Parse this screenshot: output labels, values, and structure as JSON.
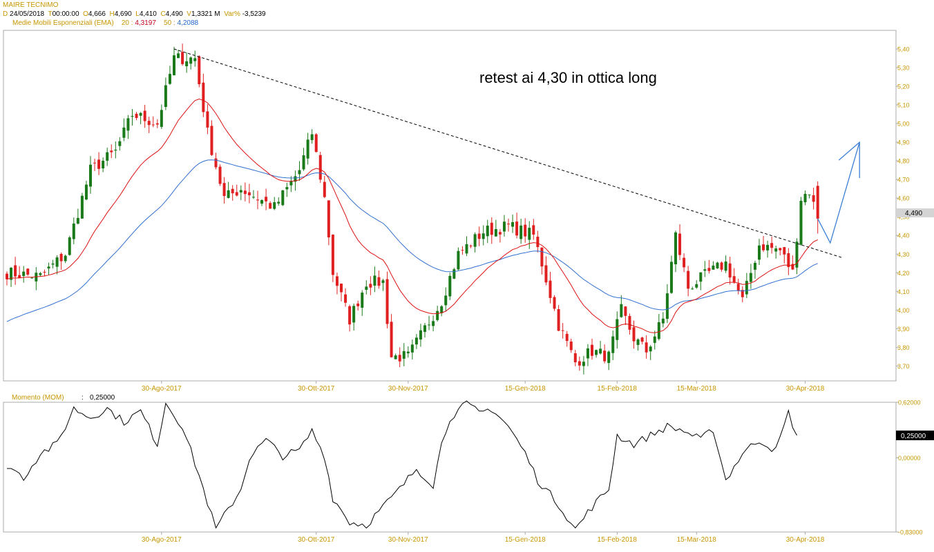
{
  "header": {
    "symbol": "MAIRE TECNIMO",
    "date_key": "D",
    "date": "24/05/2018",
    "time_key": "T",
    "time": "00:00:00",
    "open_key": "O",
    "open": "4,666",
    "high_key": "H",
    "high": "4,690",
    "low_key": "L",
    "low": "4,410",
    "close_key": "C",
    "close": "4,490",
    "vol_key": "V",
    "volume": "1,3321 M",
    "var_key": "Var%",
    "var": "-3,5239",
    "ema_label": "Medie Mobili Esponenziali (EMA)",
    "ema20_key": "20 :",
    "ema20": "4,3197",
    "ema50_key": "50 :",
    "ema50": "4,2088"
  },
  "annotation": "retest ai 4,30 in ottica long",
  "momentum": {
    "label": "Momento (MOM)",
    "sep": ":",
    "value": "0,25000"
  },
  "colors": {
    "up": "#1a7a1a",
    "down": "#e02020",
    "ema20": "#dd1010",
    "ema50": "#3070d0",
    "arrow": "#3a7fd5",
    "label_gold": "#c89600"
  },
  "chart_data": [
    {
      "type": "candlestick",
      "ylim": [
        3.62,
        5.5
      ],
      "ytick_values": [
        3.7,
        3.8,
        3.9,
        4.0,
        4.1,
        4.2,
        4.3,
        4.4,
        4.5,
        4.6,
        4.7,
        4.8,
        4.9,
        5.0,
        5.1,
        5.2,
        5.3,
        5.4
      ],
      "ytick_labels": [
        "3,70",
        "3,80",
        "3,90",
        "4,00",
        "4,10",
        "4,20",
        "4,30",
        "4,40",
        "4,50",
        "4,60",
        "4,70",
        "4,80",
        "4,90",
        "5,00",
        "5,10",
        "5,20",
        "5,30",
        "5,40"
      ],
      "last_price_label": "4,490",
      "xtick_labels": [
        "30-Ago-2017",
        "30-Ott-2017",
        "30-Nov-2017",
        "15-Gen-2018",
        "15-Feb-2018",
        "15-Mar-2018",
        "30-Apr-2018"
      ],
      "xtick_index": [
        37,
        74,
        96,
        124,
        146,
        165,
        191
      ],
      "bars": 195,
      "close_keypoints": [
        [
          0,
          4.2
        ],
        [
          8,
          4.18
        ],
        [
          14,
          4.3
        ],
        [
          20,
          4.75
        ],
        [
          26,
          4.85
        ],
        [
          30,
          5.05
        ],
        [
          36,
          5.0
        ],
        [
          40,
          5.35
        ],
        [
          45,
          5.35
        ],
        [
          48,
          4.95
        ],
        [
          52,
          4.6
        ],
        [
          56,
          4.65
        ],
        [
          60,
          4.6
        ],
        [
          64,
          4.55
        ],
        [
          70,
          4.75
        ],
        [
          73,
          4.95
        ],
        [
          76,
          4.6
        ],
        [
          78,
          4.2
        ],
        [
          82,
          3.95
        ],
        [
          86,
          4.15
        ],
        [
          90,
          4.15
        ],
        [
          92,
          3.75
        ],
        [
          96,
          3.75
        ],
        [
          100,
          3.9
        ],
        [
          104,
          4.05
        ],
        [
          108,
          4.3
        ],
        [
          114,
          4.42
        ],
        [
          120,
          4.45
        ],
        [
          126,
          4.4
        ],
        [
          128,
          4.25
        ],
        [
          132,
          3.92
        ],
        [
          136,
          3.72
        ],
        [
          140,
          3.78
        ],
        [
          144,
          3.75
        ],
        [
          147,
          4.0
        ],
        [
          150,
          3.85
        ],
        [
          153,
          3.78
        ],
        [
          157,
          3.95
        ],
        [
          160,
          4.4
        ],
        [
          163,
          4.12
        ],
        [
          168,
          4.2
        ],
        [
          172,
          4.25
        ],
        [
          176,
          4.05
        ],
        [
          180,
          4.35
        ],
        [
          185,
          4.32
        ],
        [
          188,
          4.2
        ],
        [
          190,
          4.6
        ],
        [
          192,
          4.64
        ],
        [
          194,
          4.49
        ]
      ],
      "last_candle": {
        "open": 4.666,
        "high": 4.69,
        "low": 4.41,
        "close": 4.49
      },
      "series": [
        {
          "name": "20",
          "last": 4.3197
        },
        {
          "name": "50",
          "last": 4.2088
        }
      ],
      "trendline": [
        [
          40,
          5.4
        ],
        [
          200,
          4.28
        ]
      ],
      "projection_arrow": [
        [
          194,
          4.49
        ],
        [
          197,
          4.36
        ],
        [
          204,
          4.9
        ]
      ]
    },
    {
      "type": "line",
      "ylim": [
        -0.83,
        0.62
      ],
      "ytick_values": [
        0.62,
        0.0,
        -0.83
      ],
      "ytick_labels": [
        "0,62000",
        "0,00000",
        "-0,83000"
      ],
      "last_value_label": "0,25000",
      "xtick_labels": [
        "30-Ago-2017",
        "30-Ott-2017",
        "30-Nov-2017",
        "15-Gen-2018",
        "15-Feb-2018",
        "15-Mar-2018",
        "30-Apr-2018"
      ],
      "keypoints": [
        [
          0,
          -0.08
        ],
        [
          4,
          -0.22
        ],
        [
          8,
          0.05
        ],
        [
          12,
          0.15
        ],
        [
          16,
          0.55
        ],
        [
          20,
          0.45
        ],
        [
          24,
          0.55
        ],
        [
          28,
          0.4
        ],
        [
          32,
          0.52
        ],
        [
          36,
          0.15
        ],
        [
          38,
          0.62
        ],
        [
          42,
          0.35
        ],
        [
          46,
          -0.2
        ],
        [
          50,
          -0.8
        ],
        [
          52,
          -0.65
        ],
        [
          56,
          -0.35
        ],
        [
          58,
          0.0
        ],
        [
          62,
          0.2
        ],
        [
          66,
          0.02
        ],
        [
          70,
          0.08
        ],
        [
          73,
          0.3
        ],
        [
          76,
          0.02
        ],
        [
          78,
          -0.45
        ],
        [
          82,
          -0.72
        ],
        [
          86,
          -0.75
        ],
        [
          90,
          -0.55
        ],
        [
          94,
          -0.35
        ],
        [
          98,
          -0.12
        ],
        [
          102,
          -0.3
        ],
        [
          104,
          0.15
        ],
        [
          106,
          0.45
        ],
        [
          110,
          0.6
        ],
        [
          113,
          0.5
        ],
        [
          116,
          0.55
        ],
        [
          120,
          0.35
        ],
        [
          124,
          0.05
        ],
        [
          127,
          -0.25
        ],
        [
          132,
          -0.52
        ],
        [
          136,
          -0.8
        ],
        [
          140,
          -0.55
        ],
        [
          144,
          -0.35
        ],
        [
          146,
          0.25
        ],
        [
          150,
          0.15
        ],
        [
          154,
          0.25
        ],
        [
          158,
          0.35
        ],
        [
          162,
          0.3
        ],
        [
          166,
          0.2
        ],
        [
          169,
          0.32
        ],
        [
          172,
          -0.25
        ],
        [
          176,
          0.05
        ],
        [
          180,
          0.2
        ],
        [
          184,
          0.08
        ],
        [
          187,
          0.5
        ],
        [
          189,
          0.25
        ]
      ]
    }
  ]
}
